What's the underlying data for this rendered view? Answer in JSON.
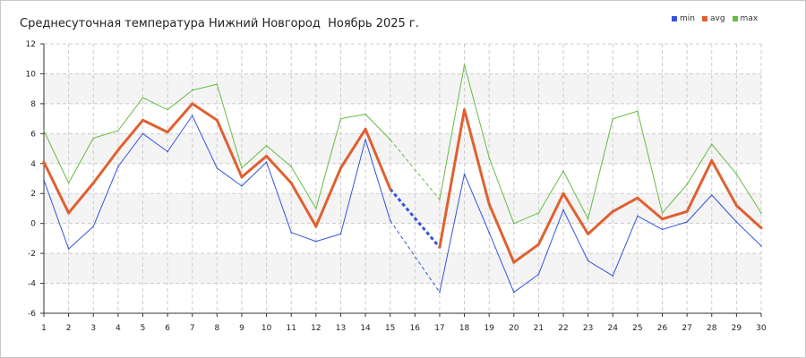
{
  "chart_data": {
    "type": "line",
    "title": "Среднесуточная температура Нижний Новгород  Ноябрь 2025 г.",
    "xlabel": "",
    "ylabel": "",
    "categories": [
      1,
      2,
      3,
      4,
      5,
      6,
      7,
      8,
      9,
      10,
      11,
      12,
      13,
      14,
      15,
      16,
      17,
      18,
      19,
      20,
      21,
      22,
      23,
      24,
      25,
      26,
      27,
      28,
      29,
      30
    ],
    "ylim": [
      -6,
      12
    ],
    "yticks": [
      -6,
      -4,
      -2,
      0,
      2,
      4,
      6,
      8,
      10,
      12
    ],
    "grid": true,
    "legend_position": "top-right",
    "missing_x": [
      16
    ],
    "series": [
      {
        "name": "min",
        "color": "#3355dd",
        "values": [
          2.9,
          -1.7,
          -0.2,
          3.8,
          6.0,
          4.8,
          7.2,
          3.7,
          2.5,
          4.1,
          -0.6,
          -1.2,
          -0.7,
          5.6,
          0.2,
          null,
          -4.6,
          3.3,
          -0.6,
          -4.6,
          -3.4,
          0.9,
          -2.5,
          -3.5,
          0.5,
          -0.4,
          0.1,
          1.9,
          0.1,
          -1.5
        ]
      },
      {
        "name": "avg",
        "color": "#e06030",
        "values": [
          4.1,
          0.7,
          2.7,
          4.9,
          6.9,
          6.1,
          8.0,
          6.9,
          3.1,
          4.5,
          2.7,
          -0.2,
          3.7,
          6.3,
          2.3,
          null,
          -1.6,
          7.6,
          1.3,
          -2.6,
          -1.4,
          2.0,
          -0.7,
          0.8,
          1.7,
          0.3,
          0.8,
          4.2,
          1.2,
          -0.3
        ]
      },
      {
        "name": "max",
        "color": "#66bb44",
        "values": [
          6.2,
          2.7,
          5.7,
          6.2,
          8.4,
          7.6,
          8.9,
          9.3,
          3.7,
          5.2,
          3.8,
          1.0,
          7.0,
          7.3,
          5.6,
          null,
          1.6,
          10.6,
          4.4,
          0.0,
          0.7,
          3.5,
          0.3,
          7.0,
          7.5,
          0.7,
          2.6,
          5.3,
          3.3,
          0.7
        ]
      }
    ]
  }
}
